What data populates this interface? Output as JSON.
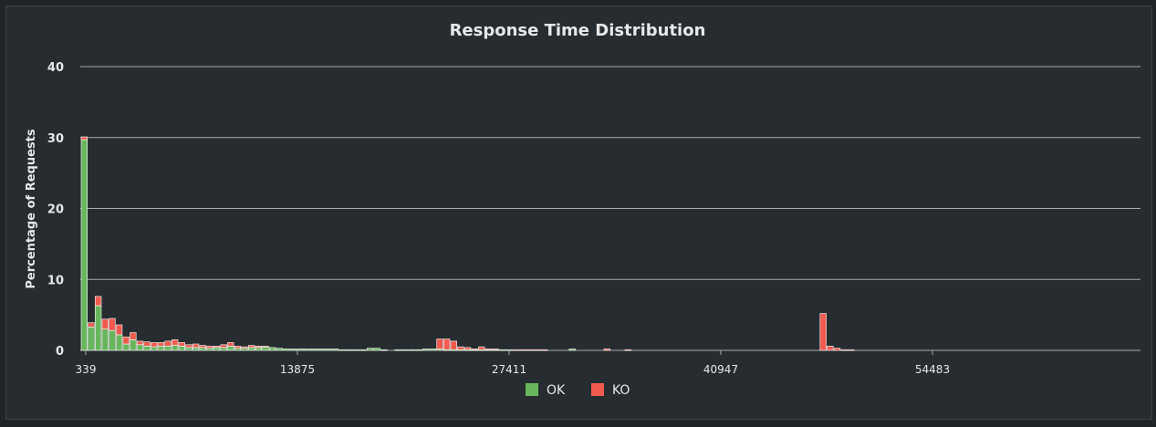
{
  "chart_data": {
    "type": "bar",
    "stacked": true,
    "title": "Response Time Distribution",
    "xlabel": "",
    "ylabel": "Percentage of Requests",
    "ylim": [
      0,
      40
    ],
    "yticks": [
      "0",
      "10",
      "20",
      "30",
      "40"
    ],
    "xticks": [
      "339",
      "13875",
      "27411",
      "40947",
      "54483"
    ],
    "bin_width_ms": 580,
    "grid": true,
    "legend_position": "bottom",
    "colors": {
      "OK": "#68b65c",
      "KO": "#f15b4f"
    },
    "bin_start": 339,
    "series": [
      {
        "name": "OK",
        "values": [
          29.7,
          3.3,
          6.3,
          3.0,
          2.8,
          2.2,
          0.9,
          1.5,
          0.8,
          0.6,
          0.5,
          0.6,
          0.6,
          0.7,
          0.6,
          0.4,
          0.4,
          0.4,
          0.3,
          0.4,
          0.4,
          0.6,
          0.3,
          0.3,
          0.4,
          0.4,
          0.5,
          0.4,
          0.3,
          0.2,
          0.2,
          0.2,
          0.2,
          0.2,
          0.2,
          0.2,
          0.2,
          0.1,
          0.1,
          0.1,
          0.1,
          0.3,
          0.3,
          0.1,
          0,
          0.1,
          0.1,
          0.1,
          0.1,
          0.2,
          0.2,
          0.2,
          0.1,
          0.1,
          0.1,
          0.1,
          0.1,
          0.1,
          0.1,
          0.1,
          0.1,
          0.1,
          0,
          0,
          0,
          0,
          0,
          0,
          0,
          0,
          0.2,
          0,
          0,
          0,
          0,
          0,
          0,
          0,
          0,
          0,
          0,
          0,
          0,
          0,
          0,
          0,
          0,
          0,
          0,
          0,
          0,
          0,
          0,
          0,
          0,
          0,
          0,
          0,
          0,
          0,
          0,
          0,
          0,
          0,
          0,
          0,
          0,
          0,
          0,
          0,
          0,
          0,
          0,
          0,
          0,
          0,
          0
        ]
      },
      {
        "name": "KO",
        "values": [
          0.4,
          0.6,
          1.3,
          1.4,
          1.7,
          1.4,
          1.0,
          1.0,
          0.5,
          0.6,
          0.6,
          0.5,
          0.7,
          0.8,
          0.5,
          0.4,
          0.5,
          0.3,
          0.3,
          0.2,
          0.4,
          0.5,
          0.3,
          0.2,
          0.3,
          0.2,
          0.1,
          0,
          0,
          0,
          0,
          0,
          0,
          0,
          0,
          0,
          0,
          0,
          0,
          0,
          0,
          0,
          0,
          0,
          0,
          0,
          0,
          0,
          0,
          0,
          0,
          1.4,
          1.5,
          1.2,
          0.4,
          0.3,
          0.1,
          0.4,
          0.1,
          0.1,
          0,
          0,
          0.1,
          0.1,
          0.1,
          0.1,
          0.1,
          0,
          0,
          0,
          0,
          0,
          0,
          0,
          0,
          0.2,
          0,
          0,
          0.1,
          0,
          0,
          0,
          0,
          0,
          0,
          0,
          0,
          0,
          0,
          0,
          0,
          0,
          0,
          0,
          0,
          0,
          0,
          0,
          0,
          0,
          0,
          0,
          0,
          0,
          0,
          0,
          5.2,
          0.6,
          0.3,
          0.1,
          0.1,
          0,
          0,
          0,
          0,
          0,
          0
        ]
      }
    ]
  }
}
